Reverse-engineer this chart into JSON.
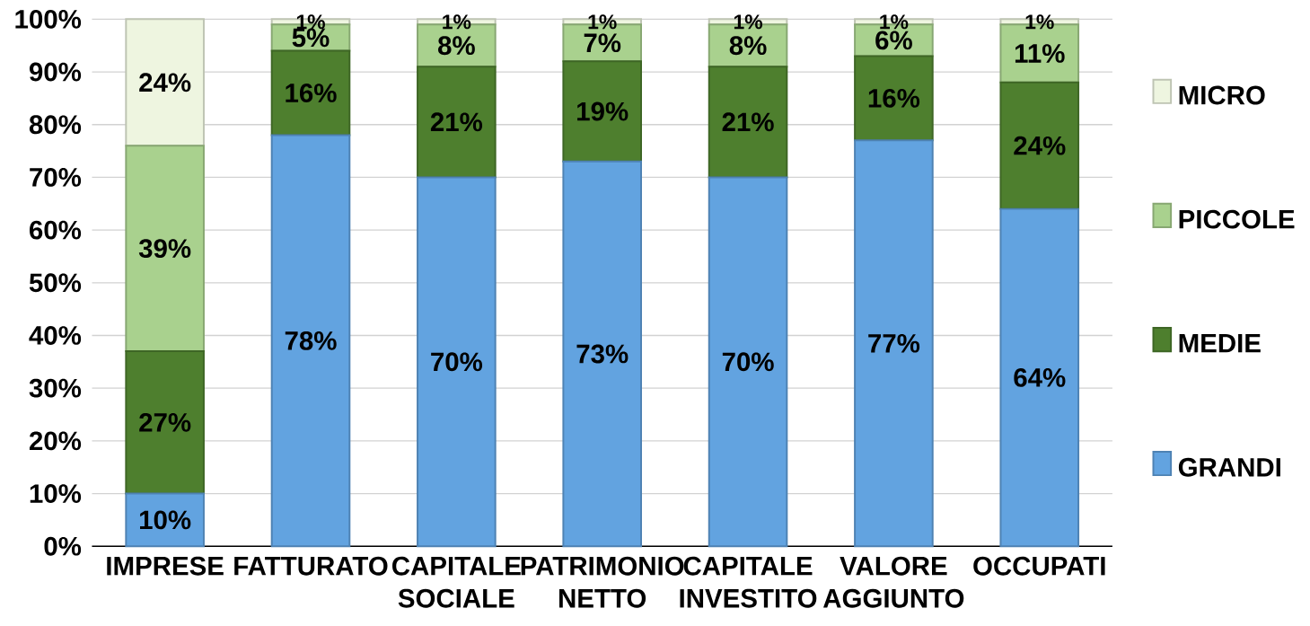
{
  "chart_data": {
    "type": "bar",
    "stacked": true,
    "categories": [
      "IMPRESE",
      "FATTURATO",
      "CAPITALE SOCIALE",
      "PATRIMONIO NETTO",
      "CAPITALE INVESTITO",
      "VALORE AGGIUNTO",
      "OCCUPATI"
    ],
    "series": [
      {
        "name": "GRANDI",
        "color": "#62a3e0",
        "values": [
          10,
          78,
          70,
          73,
          70,
          77,
          64
        ],
        "value_labels": [
          "10%",
          "78%",
          "70%",
          "73%",
          "70%",
          "77%",
          "64%"
        ]
      },
      {
        "name": "MEDIE",
        "color": "#4e7f2e",
        "values": [
          27,
          16,
          21,
          19,
          21,
          16,
          24
        ],
        "value_labels": [
          "27%",
          "16%",
          "21%",
          "19%",
          "21%",
          "16%",
          "24%"
        ]
      },
      {
        "name": "PICCOLE",
        "color": "#a9d18e",
        "values": [
          39,
          5,
          8,
          7,
          8,
          6,
          11
        ],
        "value_labels": [
          "39%",
          "5%",
          "8%",
          "7%",
          "8%",
          "6%",
          "11%"
        ]
      },
      {
        "name": "MICRO",
        "color": "#eef5e0",
        "values": [
          24,
          1,
          1,
          1,
          1,
          1,
          1
        ],
        "value_labels": [
          "24%",
          "1%",
          "1%",
          "1%",
          "1%",
          "1%",
          "1%"
        ]
      }
    ],
    "ylim": [
      0,
      100
    ],
    "yticks": [
      {
        "value": 0,
        "label": "0%"
      },
      {
        "value": 10,
        "label": "10%"
      },
      {
        "value": 20,
        "label": "20%"
      },
      {
        "value": 30,
        "label": "30%"
      },
      {
        "value": 40,
        "label": "40%"
      },
      {
        "value": 50,
        "label": "50%"
      },
      {
        "value": 60,
        "label": "60%"
      },
      {
        "value": 70,
        "label": "70%"
      },
      {
        "value": 80,
        "label": "80%"
      },
      {
        "value": 90,
        "label": "90%"
      },
      {
        "value": 100,
        "label": "100%"
      }
    ],
    "grid": "y",
    "legend": "right"
  }
}
